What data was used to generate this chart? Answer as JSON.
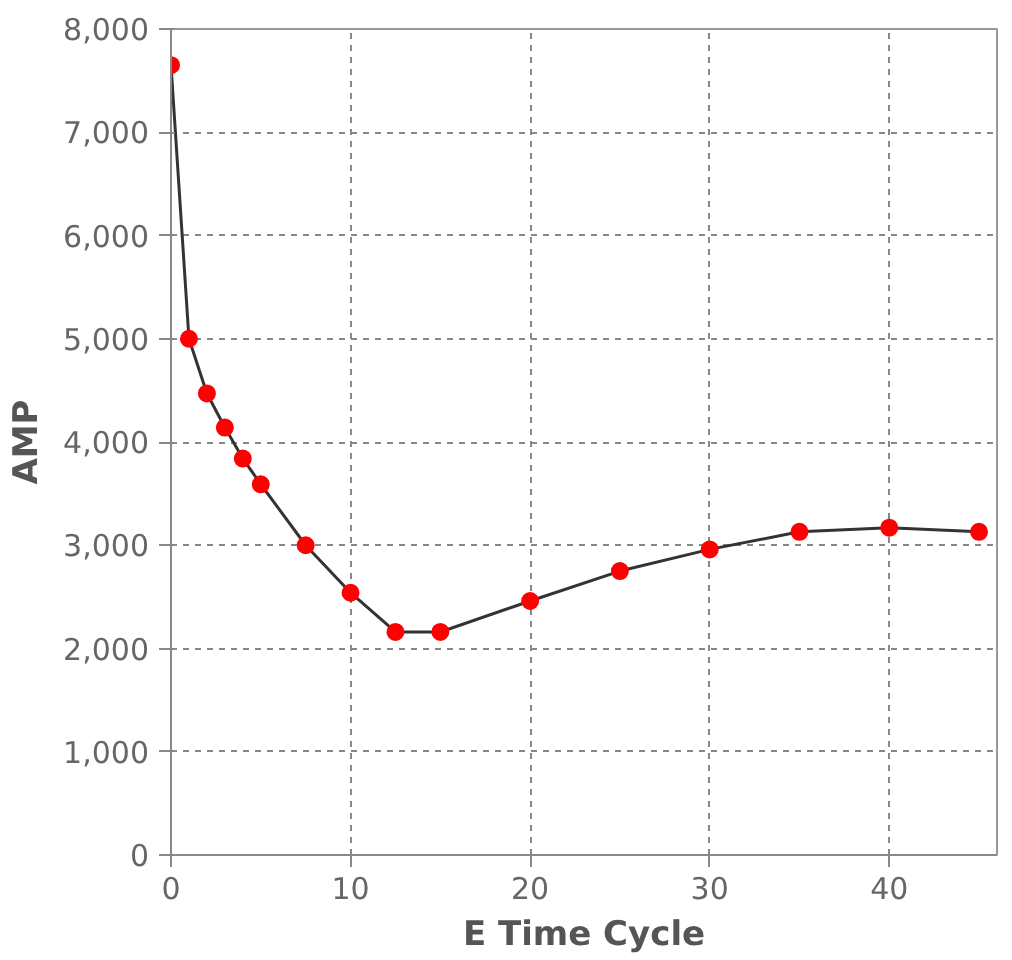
{
  "chart_data": {
    "type": "line",
    "xlabel": "E Time Cycle",
    "ylabel": "AMP",
    "x": [
      0,
      1,
      2,
      3,
      4,
      5,
      7.5,
      10,
      12.5,
      15,
      20,
      25,
      30,
      35,
      40,
      45
    ],
    "series": [
      {
        "color": "#ff0000",
        "values": [
          7650,
          5000,
          4470,
          4140,
          3840,
          3590,
          3000,
          2540,
          2160,
          2160,
          2460,
          2750,
          2960,
          3130,
          3170,
          3130
        ]
      }
    ],
    "xlim": [
      0,
      46
    ],
    "ylim": [
      0,
      8000
    ],
    "xticks": [
      0,
      10,
      20,
      30,
      40
    ],
    "yticks": [
      0,
      {
        "value": 1000,
        "label": "1,000"
      },
      {
        "value": 2000,
        "label": "2,000"
      },
      {
        "value": 3000,
        "label": "3,000"
      },
      {
        "value": 4000,
        "label": "4,000"
      },
      {
        "value": 5000,
        "label": "5,000"
      },
      {
        "value": 6000,
        "label": "6,000"
      },
      {
        "value": 7000,
        "label": "7,000"
      },
      {
        "value": 8000,
        "label": "8,000"
      }
    ],
    "grid": true,
    "marker": "circle",
    "line_style": "solid"
  }
}
